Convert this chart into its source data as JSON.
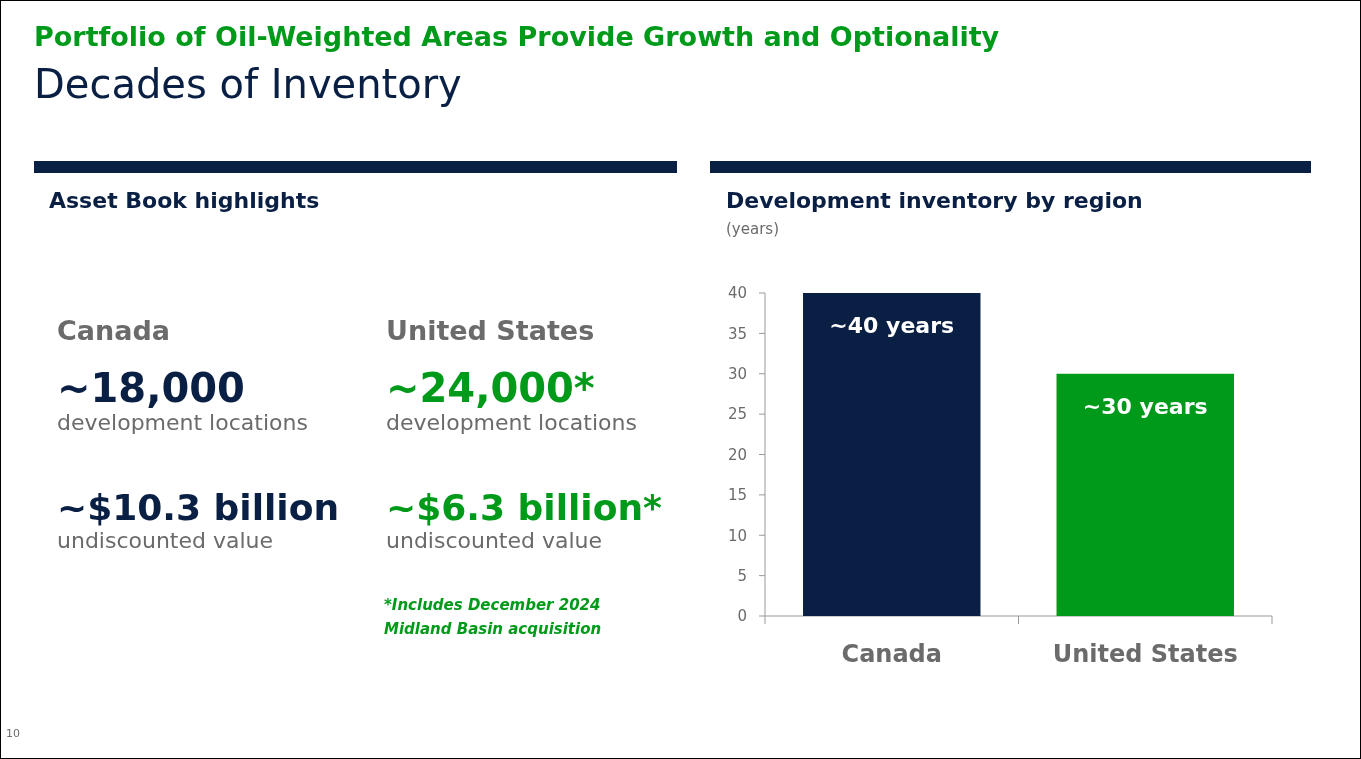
{
  "chart_data": [
    {
      "type": "other",
      "title": "Asset Book highlights",
      "annotations": [
        "Portfolio of Oil-Weighted Areas Provide Growth and Optionality",
        "Decades of Inventory",
        "Canada",
        "~18,000",
        "development locations",
        "~$10.3 billion",
        "undiscounted value",
        "United States",
        "~24,000*",
        "development locations",
        "~$6.3 billion*",
        "undiscounted value",
        "*Includes December 2024",
        "Midland Basin acquisition",
        "10"
      ]
    },
    {
      "type": "bar",
      "title": "Development inventory by region",
      "subtitle": "(years)",
      "categories": [
        "Canada",
        "United States"
      ],
      "values": [
        40,
        30
      ],
      "colors": [
        "#0a1f44",
        "#009a1a"
      ],
      "value_labels": [
        "~40 years",
        "~30 years"
      ],
      "ylim": [
        0,
        40
      ],
      "yticks": [
        0,
        5,
        10,
        15,
        20,
        25,
        30,
        35,
        40
      ],
      "grid": false
    }
  ]
}
